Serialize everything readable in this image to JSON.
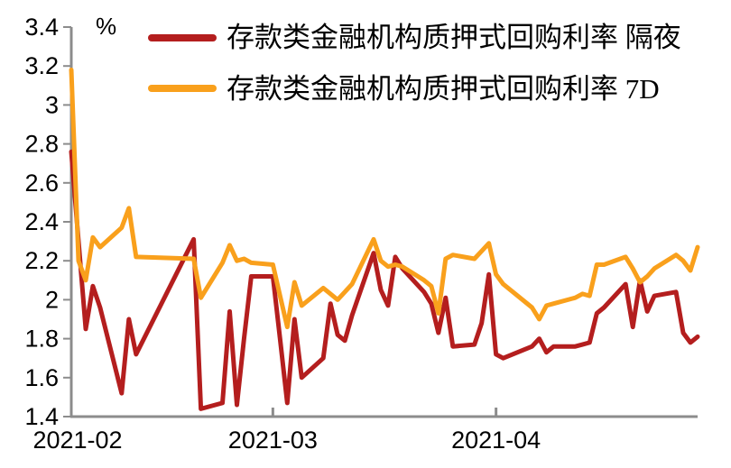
{
  "chart_data": {
    "type": "line",
    "unit_label": "%",
    "grid": false,
    "legend_position": "top",
    "axis_color": "#8c8c8c",
    "label_color": "#000000",
    "background": "#ffffff",
    "x_axis": {
      "tick_labels": [
        "2021-02",
        "2021-03",
        "2021-04"
      ],
      "tick_days": [
        0,
        28,
        59
      ],
      "tick_marks_days": [
        28,
        59
      ],
      "domain_days_from_feb1": [
        0,
        87
      ]
    },
    "y_axis": {
      "min": 1.4,
      "max": 3.4,
      "step": 0.2,
      "tick_labels": [
        "1.4",
        "1.6",
        "1.8",
        "2",
        "2.2",
        "2.4",
        "2.6",
        "2.8",
        "3",
        "3.2",
        "3.4"
      ]
    },
    "series": [
      {
        "name": "存款类金融机构质押式回购利率 隔夜",
        "color": "#b41e1e",
        "days": [
          0,
          1,
          2,
          3,
          4,
          7,
          8,
          9,
          17,
          18,
          21,
          22,
          23,
          24,
          25,
          28,
          29,
          30,
          31,
          32,
          35,
          36,
          37,
          38,
          39,
          42,
          43,
          44,
          45,
          46,
          49,
          50,
          51,
          52,
          53,
          56,
          57,
          58,
          59,
          60,
          64,
          65,
          66,
          67,
          70,
          71,
          72,
          73,
          74,
          77,
          78,
          79,
          80,
          81,
          84,
          85,
          86,
          87
        ],
        "values": [
          2.76,
          2.3,
          1.85,
          2.07,
          1.96,
          1.52,
          1.9,
          1.72,
          2.31,
          1.44,
          1.47,
          1.94,
          1.46,
          1.8,
          2.12,
          2.12,
          1.8,
          1.47,
          1.9,
          1.6,
          1.7,
          1.98,
          1.82,
          1.79,
          1.92,
          2.24,
          2.05,
          1.97,
          2.22,
          2.16,
          2.04,
          1.98,
          1.83,
          2.01,
          1.76,
          1.77,
          1.88,
          2.13,
          1.72,
          1.7,
          1.76,
          1.8,
          1.73,
          1.76,
          1.76,
          1.77,
          1.78,
          1.93,
          1.96,
          2.08,
          1.86,
          2.1,
          1.94,
          2.02,
          2.04,
          1.83,
          1.78,
          1.81
        ]
      },
      {
        "name": "存款类金融机构质押式回购利率 7D",
        "color": "#f9a01c",
        "days": [
          0,
          1,
          2,
          3,
          4,
          7,
          8,
          9,
          17,
          18,
          21,
          22,
          23,
          24,
          25,
          28,
          29,
          30,
          31,
          32,
          35,
          36,
          37,
          38,
          39,
          42,
          43,
          44,
          45,
          46,
          49,
          50,
          51,
          52,
          53,
          56,
          57,
          58,
          59,
          60,
          64,
          65,
          66,
          67,
          70,
          71,
          72,
          73,
          74,
          77,
          78,
          79,
          80,
          81,
          84,
          85,
          86,
          87
        ],
        "values": [
          3.18,
          2.2,
          2.1,
          2.32,
          2.27,
          2.37,
          2.47,
          2.22,
          2.21,
          2.01,
          2.19,
          2.28,
          2.2,
          2.21,
          2.19,
          2.18,
          2.02,
          1.86,
          2.09,
          1.97,
          2.06,
          2.03,
          2.0,
          2.04,
          2.08,
          2.31,
          2.2,
          2.17,
          2.18,
          2.17,
          2.1,
          2.07,
          1.93,
          2.21,
          2.23,
          2.21,
          2.25,
          2.29,
          2.13,
          2.08,
          1.96,
          1.9,
          1.97,
          1.98,
          2.01,
          2.03,
          2.02,
          2.18,
          2.18,
          2.22,
          2.16,
          2.09,
          2.12,
          2.16,
          2.23,
          2.2,
          2.15,
          2.27
        ]
      }
    ]
  }
}
